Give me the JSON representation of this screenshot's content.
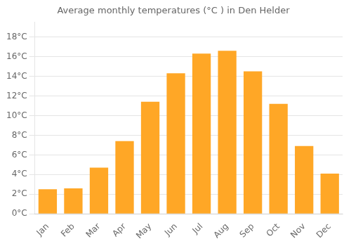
{
  "chart_data": {
    "type": "bar",
    "title": "Average monthly temperatures (°C ) in Den Helder",
    "categories": [
      "Jan",
      "Feb",
      "Mar",
      "Apr",
      "May",
      "Jun",
      "Jul",
      "Aug",
      "Sep",
      "Oct",
      "Nov",
      "Dec"
    ],
    "values": [
      2.5,
      2.6,
      4.7,
      7.4,
      11.4,
      14.3,
      16.3,
      16.6,
      14.5,
      11.2,
      6.9,
      4.1
    ],
    "color": "#FFA726",
    "ylim": [
      0,
      19.5
    ],
    "yticks": [
      {
        "value": 0,
        "label": "0°C"
      },
      {
        "value": 2,
        "label": "2°C"
      },
      {
        "value": 4,
        "label": "4°C"
      },
      {
        "value": 6,
        "label": "6°C"
      },
      {
        "value": 8,
        "label": "8°C"
      },
      {
        "value": 10,
        "label": "10°C"
      },
      {
        "value": 12,
        "label": "12°C"
      },
      {
        "value": 14,
        "label": "14°C"
      },
      {
        "value": 16,
        "label": "16°C"
      },
      {
        "value": 18,
        "label": "18°C"
      }
    ],
    "grid": true
  }
}
